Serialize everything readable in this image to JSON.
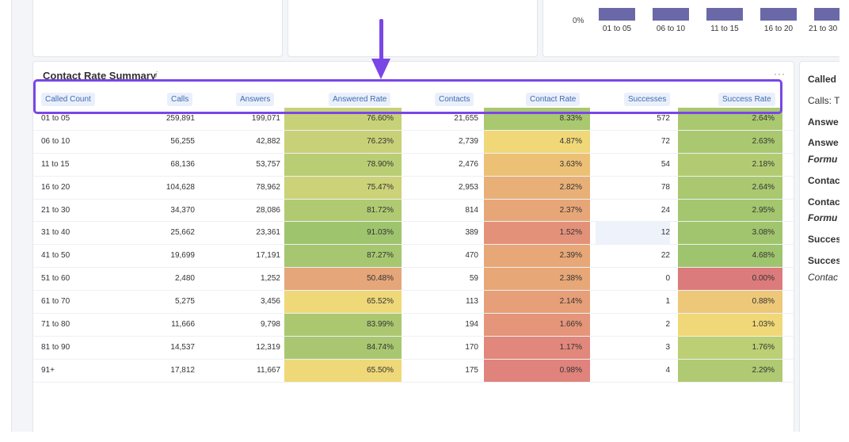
{
  "top_chart": {
    "zero_label": "0%",
    "categories": [
      "01 to 05",
      "06 to 10",
      "11 to 15",
      "16 to 20",
      "21 to 30"
    ],
    "bar_color": "#6b68a8"
  },
  "table": {
    "title": "Contact Rate Summary",
    "headers": [
      "Called Count",
      "Calls",
      "Answers",
      "Answered Rate",
      "Contacts",
      "Contact Rate",
      "Successes",
      "Success Rate"
    ],
    "rows": [
      {
        "label": "01 to 05",
        "calls": "259,891",
        "answers": "199,071",
        "answered_rate": "76.60%",
        "contacts": "21,655",
        "contact_rate": "8.33%",
        "successes": "572",
        "success_rate": "2.64%",
        "ar_color": "#c7d178",
        "cr_color": "#a9c870",
        "sr_color": "#a9c870"
      },
      {
        "label": "06 to 10",
        "calls": "56,255",
        "answers": "42,882",
        "answered_rate": "76.23%",
        "contacts": "2,739",
        "contact_rate": "4.87%",
        "successes": "72",
        "success_rate": "2.63%",
        "ar_color": "#c9d178",
        "cr_color": "#f0d878",
        "sr_color": "#a9c870"
      },
      {
        "label": "11 to 15",
        "calls": "68,136",
        "answers": "53,757",
        "answered_rate": "78.90%",
        "contacts": "2,476",
        "contact_rate": "3.63%",
        "successes": "54",
        "success_rate": "2.18%",
        "ar_color": "#b9ce74",
        "cr_color": "#ecc176",
        "sr_color": "#b2cb72"
      },
      {
        "label": "16 to 20",
        "calls": "104,628",
        "answers": "78,962",
        "answered_rate": "75.47%",
        "contacts": "2,953",
        "contact_rate": "2.82%",
        "successes": "78",
        "success_rate": "2.64%",
        "ar_color": "#cbd278",
        "cr_color": "#e8b077",
        "sr_color": "#a9c870"
      },
      {
        "label": "21 to 30",
        "calls": "34,370",
        "answers": "28,086",
        "answered_rate": "81.72%",
        "contacts": "814",
        "contact_rate": "2.37%",
        "successes": "24",
        "success_rate": "2.95%",
        "ar_color": "#b0ca72",
        "cr_color": "#e7a677",
        "sr_color": "#a3c66e"
      },
      {
        "label": "31 to 40",
        "calls": "25,662",
        "answers": "23,361",
        "answered_rate": "91.03%",
        "contacts": "389",
        "contact_rate": "1.52%",
        "successes": "12",
        "success_rate": "3.08%",
        "ar_color": "#9fc46e",
        "cr_color": "#e4917a",
        "sr_color": "#a1c56e",
        "succ_color": "#eef2fb"
      },
      {
        "label": "41 to 50",
        "calls": "19,699",
        "answers": "17,191",
        "answered_rate": "87.27%",
        "contacts": "470",
        "contact_rate": "2.39%",
        "successes": "22",
        "success_rate": "4.68%",
        "ar_color": "#a6c770",
        "cr_color": "#e7a777",
        "sr_color": "#9fc46e"
      },
      {
        "label": "51 to 60",
        "calls": "2,480",
        "answers": "1,252",
        "answered_rate": "50.48%",
        "contacts": "59",
        "contact_rate": "2.38%",
        "successes": "0",
        "success_rate": "0.00%",
        "ar_color": "#e5a67a",
        "cr_color": "#e7a777",
        "sr_color": "#dc7b7b"
      },
      {
        "label": "61 to 70",
        "calls": "5,275",
        "answers": "3,456",
        "answered_rate": "65.52%",
        "contacts": "113",
        "contact_rate": "2.14%",
        "successes": "1",
        "success_rate": "0.88%",
        "ar_color": "#efd878",
        "cr_color": "#e69f78",
        "sr_color": "#edc878"
      },
      {
        "label": "71 to 80",
        "calls": "11,666",
        "answers": "9,798",
        "answered_rate": "83.99%",
        "contacts": "194",
        "contact_rate": "1.66%",
        "successes": "2",
        "success_rate": "1.03%",
        "ar_color": "#abc871",
        "cr_color": "#e4957a",
        "sr_color": "#f0d878"
      },
      {
        "label": "81 to 90",
        "calls": "14,537",
        "answers": "12,319",
        "answered_rate": "84.74%",
        "contacts": "170",
        "contact_rate": "1.17%",
        "successes": "3",
        "success_rate": "1.76%",
        "ar_color": "#a9c771",
        "cr_color": "#e2877b",
        "sr_color": "#bccf74"
      },
      {
        "label": "91+",
        "calls": "17,812",
        "answers": "11,667",
        "answered_rate": "65.50%",
        "contacts": "175",
        "contact_rate": "0.98%",
        "successes": "4",
        "success_rate": "2.29%",
        "ar_color": "#efd878",
        "cr_color": "#e0837c",
        "sr_color": "#afca72"
      }
    ]
  },
  "side_panel": {
    "items": [
      "Called C",
      "Calls: T",
      "Answe",
      "Answe",
      "Formu",
      "Contac",
      "Contac",
      "Formu",
      "Succes",
      "Succes",
      "Contac"
    ]
  },
  "annotation": {
    "color": "#7a46e6"
  }
}
